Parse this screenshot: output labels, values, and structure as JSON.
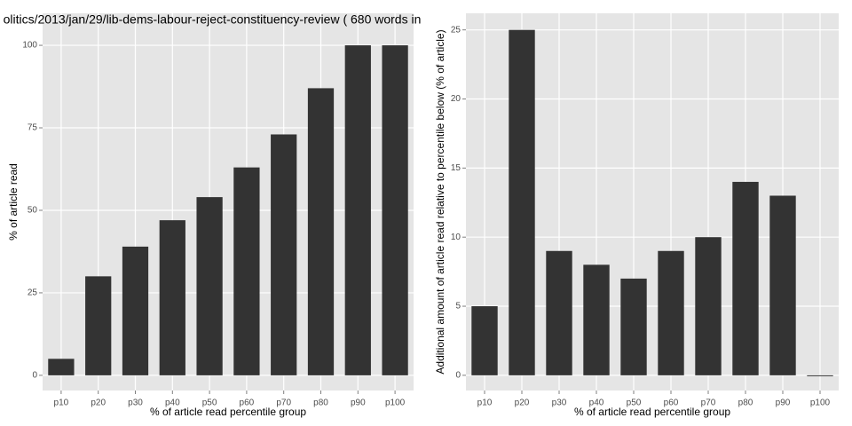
{
  "chart_data": [
    {
      "type": "bar",
      "title": "olitics/2013/jan/29/lib-dems-labour-reject-constituency-review ( 680 words in",
      "x_label": "% of article read percentile group",
      "y_label": "% of article read",
      "categories": [
        "p10",
        "p20",
        "p30",
        "p40",
        "p50",
        "p60",
        "p70",
        "p80",
        "p90",
        "p100"
      ],
      "values": [
        5,
        30,
        39,
        47,
        54,
        63,
        73,
        87,
        100,
        100
      ],
      "color": "#333333",
      "ylim": [
        -4.6,
        109.7
      ],
      "yticks": [
        0,
        25,
        50,
        75,
        100
      ],
      "grid": true
    },
    {
      "type": "bar",
      "x_label": "% of article read percentile group",
      "y_label": "Additional amount of article read relative to percentile below (% of article)",
      "categories": [
        "p10",
        "p20",
        "p30",
        "p40",
        "p50",
        "p60",
        "p70",
        "p80",
        "p90",
        "p100"
      ],
      "values": [
        5,
        25,
        9,
        8,
        7,
        9,
        10,
        14,
        13,
        0
      ],
      "color": "#333333",
      "ylim": [
        -1.1,
        26.2
      ],
      "yticks": [
        0,
        5,
        10,
        15,
        20,
        25
      ],
      "grid": true
    }
  ]
}
